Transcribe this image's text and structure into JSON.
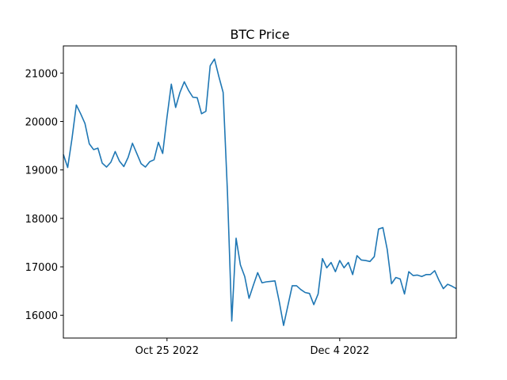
{
  "chart_data": {
    "type": "line",
    "title": "BTC Price",
    "xlabel": "",
    "ylabel": "",
    "ylim": [
      15530,
      21560
    ],
    "grid": false,
    "legend": "none",
    "colors": {
      "line": "#1f77b4"
    },
    "x_tick_labels": [
      {
        "date": "2022-10-25",
        "label": "Oct 25 2022"
      },
      {
        "date": "2022-12-04",
        "label": "Dec 4 2022"
      }
    ],
    "y_ticks": [
      16000,
      17000,
      18000,
      19000,
      20000,
      21000
    ],
    "x": [
      "2022-10-01",
      "2022-10-02",
      "2022-10-03",
      "2022-10-04",
      "2022-10-05",
      "2022-10-06",
      "2022-10-07",
      "2022-10-08",
      "2022-10-09",
      "2022-10-10",
      "2022-10-11",
      "2022-10-12",
      "2022-10-13",
      "2022-10-14",
      "2022-10-15",
      "2022-10-16",
      "2022-10-17",
      "2022-10-18",
      "2022-10-19",
      "2022-10-20",
      "2022-10-21",
      "2022-10-22",
      "2022-10-23",
      "2022-10-24",
      "2022-10-25",
      "2022-10-26",
      "2022-10-27",
      "2022-10-28",
      "2022-10-29",
      "2022-10-30",
      "2022-10-31",
      "2022-11-01",
      "2022-11-02",
      "2022-11-03",
      "2022-11-04",
      "2022-11-05",
      "2022-11-06",
      "2022-11-07",
      "2022-11-08",
      "2022-11-09",
      "2022-11-10",
      "2022-11-11",
      "2022-11-12",
      "2022-11-13",
      "2022-11-14",
      "2022-11-15",
      "2022-11-16",
      "2022-11-17",
      "2022-11-18",
      "2022-11-19",
      "2022-11-20",
      "2022-11-21",
      "2022-11-22",
      "2022-11-23",
      "2022-11-24",
      "2022-11-25",
      "2022-11-26",
      "2022-11-27",
      "2022-11-28",
      "2022-11-29",
      "2022-11-30",
      "2022-12-01",
      "2022-12-02",
      "2022-12-03",
      "2022-12-04",
      "2022-12-05",
      "2022-12-06",
      "2022-12-07",
      "2022-12-08",
      "2022-12-09",
      "2022-12-10",
      "2022-12-11",
      "2022-12-12",
      "2022-12-13",
      "2022-12-14",
      "2022-12-15",
      "2022-12-16",
      "2022-12-17",
      "2022-12-18",
      "2022-12-19",
      "2022-12-20",
      "2022-12-21",
      "2022-12-22",
      "2022-12-23",
      "2022-12-24",
      "2022-12-25",
      "2022-12-26",
      "2022-12-27",
      "2022-12-28",
      "2022-12-29",
      "2022-12-30",
      "2022-12-31"
    ],
    "series": [
      {
        "values": [
          19320,
          19050,
          19650,
          20340,
          20160,
          19960,
          19540,
          19420,
          19450,
          19140,
          19060,
          19160,
          19380,
          19180,
          19070,
          19260,
          19550,
          19340,
          19130,
          19060,
          19170,
          19210,
          19570,
          19340,
          20090,
          20770,
          20290,
          20600,
          20820,
          20640,
          20500,
          20490,
          20160,
          20210,
          21150,
          21290,
          20930,
          20600,
          18540,
          15880,
          17590,
          17040,
          16800,
          16350,
          16620,
          16880,
          16670,
          16690,
          16700,
          16710,
          16280,
          15790,
          16200,
          16610,
          16610,
          16530,
          16470,
          16450,
          16220,
          16440,
          17170,
          16980,
          17090,
          16900,
          17130,
          16980,
          17090,
          16840,
          17230,
          17140,
          17130,
          17110,
          17210,
          17780,
          17810,
          17360,
          16650,
          16780,
          16750,
          16440,
          16900,
          16820,
          16830,
          16800,
          16840,
          16840,
          16920,
          16720,
          16550,
          16640,
          16600,
          16550
        ]
      }
    ]
  }
}
